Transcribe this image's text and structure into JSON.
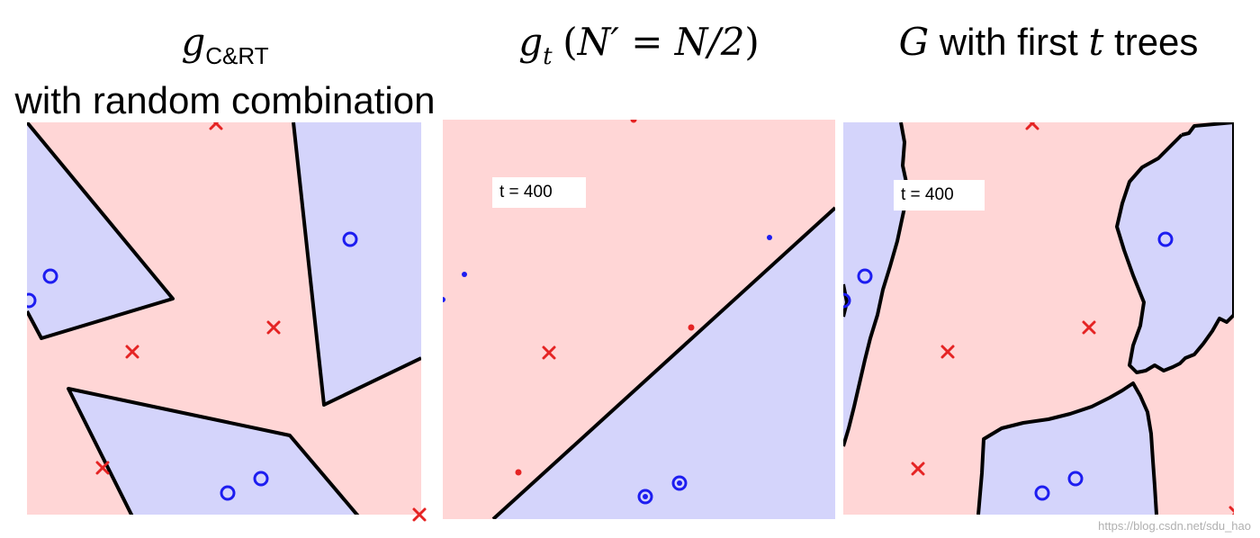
{
  "titles": {
    "panel1": {
      "symbol": "g",
      "subscript": "C&RT",
      "line2": "with random combination"
    },
    "panel2": {
      "symbol": "g",
      "subscript": "t",
      "paren_open": "(",
      "n_prime": "N′",
      "equals": " = ",
      "rhs": "N/2",
      "paren_close": ")"
    },
    "panel3": {
      "symbol": "G",
      "middle": " with first ",
      "var": "t",
      "end": " trees"
    }
  },
  "labels": {
    "panel2_iter": "t = 400",
    "panel3_iter": "t = 400"
  },
  "watermark": "https://blog.csdn.net/sdu_hao",
  "colors": {
    "region_x": "#ffd6d6",
    "region_o": "#d4d4fb",
    "boundary": "#000000",
    "marker_x": "#e52424",
    "marker_o": "#1d1df0"
  },
  "markers": {
    "x_shape": "cross",
    "o_shape": "circle"
  }
}
